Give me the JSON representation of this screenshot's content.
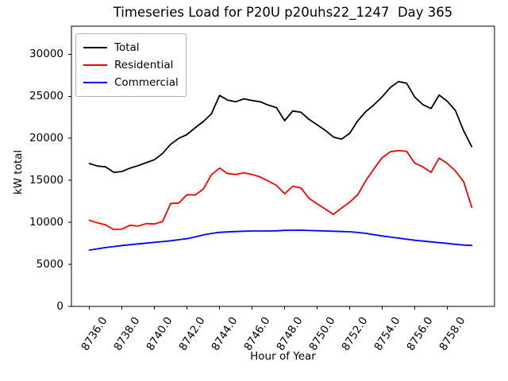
{
  "chart_data": {
    "type": "line",
    "title": "Timeseries Load for P20U p20uhs22_1247  Day 365",
    "xlabel": "Hour of Year",
    "ylabel": "kW total",
    "grid": false,
    "legend_position": "upper left",
    "xlim": [
      8734.9,
      8760.9
    ],
    "ylim": [
      0,
      33340
    ],
    "xticks": [
      8736,
      8738,
      8740,
      8742,
      8744,
      8746,
      8748,
      8750,
      8752,
      8754,
      8756,
      8758
    ],
    "xtick_labels": [
      "8736.0",
      "8738.0",
      "8740.0",
      "8742.0",
      "8744.0",
      "8746.0",
      "8748.0",
      "8750.0",
      "8752.0",
      "8754.0",
      "8756.0",
      "8758.0"
    ],
    "yticks": [
      0,
      5000,
      10000,
      15000,
      20000,
      25000,
      30000
    ],
    "ytick_labels": [
      "0",
      "5000",
      "10000",
      "15000",
      "20000",
      "25000",
      "30000"
    ],
    "x": [
      8736.0,
      8736.5,
      8737.0,
      8737.5,
      8738.0,
      8738.5,
      8739.0,
      8739.5,
      8740.0,
      8740.5,
      8741.0,
      8741.5,
      8742.0,
      8742.5,
      8743.0,
      8743.5,
      8744.0,
      8744.5,
      8745.0,
      8745.5,
      8746.0,
      8746.5,
      8747.0,
      8747.5,
      8748.0,
      8748.5,
      8749.0,
      8749.5,
      8750.0,
      8750.5,
      8751.0,
      8751.5,
      8752.0,
      8752.5,
      8753.0,
      8753.5,
      8754.0,
      8754.5,
      8755.0,
      8755.5,
      8756.0,
      8756.5,
      8757.0,
      8757.5,
      8758.0,
      8758.5,
      8759.0,
      8759.5
    ],
    "series": [
      {
        "name": "Total",
        "color": "#000000",
        "values": [
          17000,
          16700,
          16600,
          15950,
          16050,
          16450,
          16750,
          17100,
          17450,
          18200,
          19300,
          20000,
          20450,
          21250,
          22000,
          22900,
          25100,
          24550,
          24350,
          24700,
          24500,
          24350,
          23950,
          23650,
          22100,
          23250,
          23100,
          22250,
          21600,
          20950,
          20150,
          19900,
          20600,
          22100,
          23200,
          24000,
          24950,
          26050,
          26750,
          26550,
          24900,
          24000,
          23550,
          25150,
          24400,
          23300,
          20900,
          19000
        ]
      },
      {
        "name": "Residential",
        "color": "#ff0000",
        "values": [
          10250,
          9950,
          9700,
          9150,
          9200,
          9650,
          9550,
          9850,
          9800,
          10100,
          12250,
          12300,
          13300,
          13250,
          13950,
          15650,
          16450,
          15800,
          15700,
          15900,
          15700,
          15400,
          14900,
          14400,
          13400,
          14300,
          14100,
          12850,
          12200,
          11580,
          10950,
          11700,
          12400,
          13300,
          15000,
          16400,
          17700,
          18400,
          18550,
          18450,
          17050,
          16600,
          15950,
          17650,
          17000,
          16100,
          14850,
          11800
        ]
      },
      {
        "name": "Commercial",
        "color": "#0000ff",
        "values": [
          6700,
          6850,
          7000,
          7120,
          7240,
          7340,
          7430,
          7530,
          7620,
          7710,
          7810,
          7930,
          8060,
          8260,
          8500,
          8680,
          8810,
          8860,
          8905,
          8940,
          8970,
          8975,
          8975,
          8990,
          9050,
          9060,
          9065,
          9030,
          9000,
          8970,
          8940,
          8910,
          8875,
          8790,
          8690,
          8530,
          8375,
          8250,
          8120,
          7990,
          7870,
          7770,
          7680,
          7580,
          7490,
          7390,
          7300,
          7250
        ]
      }
    ]
  }
}
